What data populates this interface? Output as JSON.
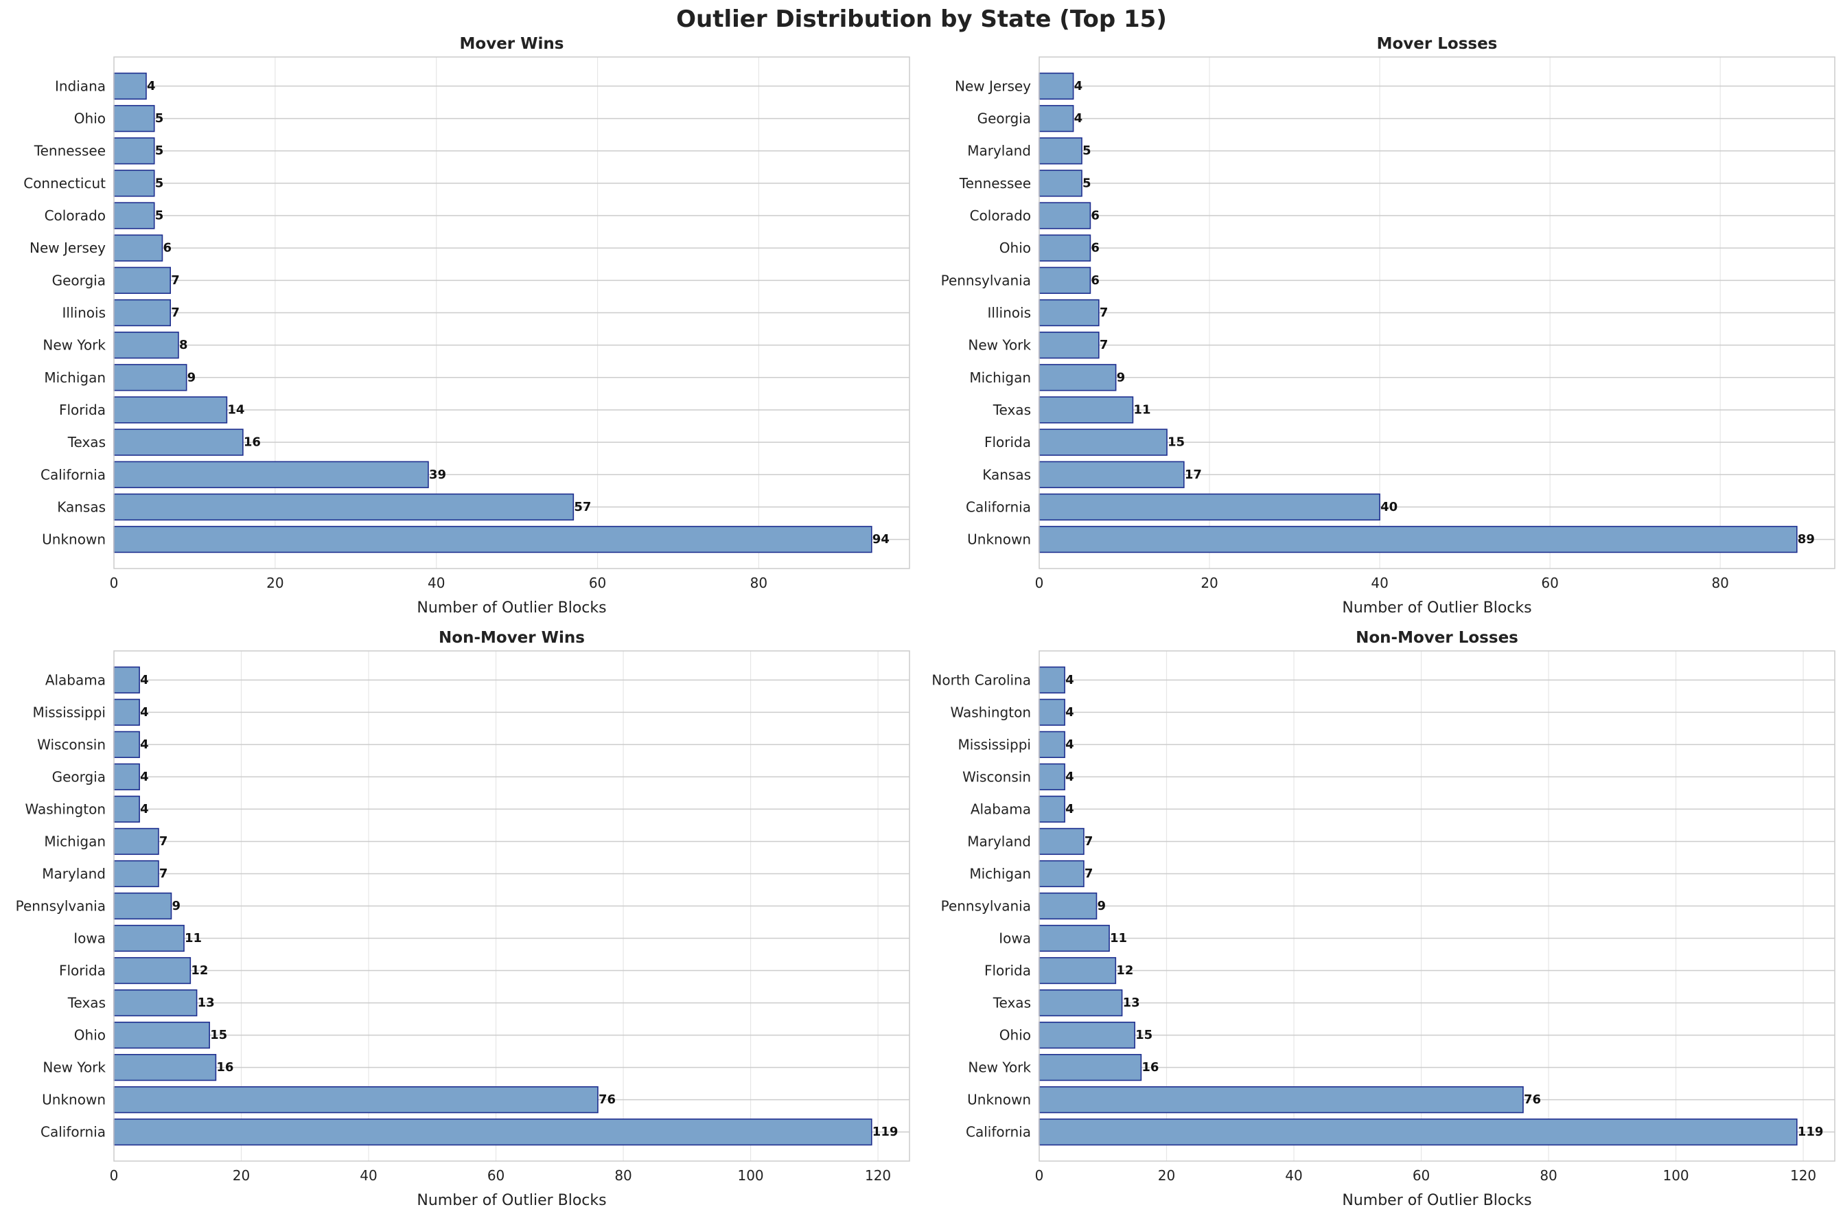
{
  "title": "Outlier Distribution by State (Top 15)",
  "colors": {
    "bar_fill": "#7ba3cb",
    "bar_edge": "#1f2f8f",
    "grid": "#e6e6e6",
    "hgrid": "#cccccc",
    "axis": "#cccccc"
  },
  "chart_data": [
    {
      "type": "bar",
      "orientation": "horizontal",
      "title": "Mover Wins",
      "xlabel": "Number of Outlier Blocks",
      "xlim": [
        0,
        98.7
      ],
      "xticks": [
        0,
        20,
        40,
        60,
        80
      ],
      "grid": true,
      "categories": [
        "Unknown",
        "Kansas",
        "California",
        "Texas",
        "Florida",
        "Michigan",
        "New York",
        "Illinois",
        "Georgia",
        "New Jersey",
        "Colorado",
        "Connecticut",
        "Tennessee",
        "Ohio",
        "Indiana"
      ],
      "values": [
        94,
        57,
        39,
        16,
        14,
        9,
        8,
        7,
        7,
        6,
        5,
        5,
        5,
        5,
        4
      ]
    },
    {
      "type": "bar",
      "orientation": "horizontal",
      "title": "Mover Losses",
      "xlabel": "Number of Outlier Blocks",
      "xlim": [
        0,
        93.45
      ],
      "xticks": [
        0,
        20,
        40,
        60,
        80
      ],
      "grid": true,
      "categories": [
        "Unknown",
        "California",
        "Kansas",
        "Florida",
        "Texas",
        "Michigan",
        "New York",
        "Illinois",
        "Pennsylvania",
        "Ohio",
        "Colorado",
        "Tennessee",
        "Maryland",
        "Georgia",
        "New Jersey"
      ],
      "values": [
        89,
        40,
        17,
        15,
        11,
        9,
        7,
        7,
        6,
        6,
        6,
        5,
        5,
        4,
        4
      ]
    },
    {
      "type": "bar",
      "orientation": "horizontal",
      "title": "Non-Mover Wins",
      "xlabel": "Number of Outlier Blocks",
      "xlim": [
        0,
        124.95
      ],
      "xticks": [
        0,
        20,
        40,
        60,
        80,
        100,
        120
      ],
      "grid": true,
      "categories": [
        "California",
        "Unknown",
        "New York",
        "Ohio",
        "Texas",
        "Florida",
        "Iowa",
        "Pennsylvania",
        "Maryland",
        "Michigan",
        "Washington",
        "Georgia",
        "Wisconsin",
        "Mississippi",
        "Alabama"
      ],
      "values": [
        119,
        76,
        16,
        15,
        13,
        12,
        11,
        9,
        7,
        7,
        4,
        4,
        4,
        4,
        4
      ]
    },
    {
      "type": "bar",
      "orientation": "horizontal",
      "title": "Non-Mover Losses",
      "xlabel": "Number of Outlier Blocks",
      "xlim": [
        0,
        124.95
      ],
      "xticks": [
        0,
        20,
        40,
        60,
        80,
        100,
        120
      ],
      "grid": true,
      "categories": [
        "California",
        "Unknown",
        "New York",
        "Ohio",
        "Texas",
        "Florida",
        "Iowa",
        "Pennsylvania",
        "Michigan",
        "Maryland",
        "Alabama",
        "Wisconsin",
        "Mississippi",
        "Washington",
        "North Carolina"
      ],
      "values": [
        119,
        76,
        16,
        15,
        13,
        12,
        11,
        9,
        7,
        7,
        4,
        4,
        4,
        4,
        4
      ]
    }
  ]
}
